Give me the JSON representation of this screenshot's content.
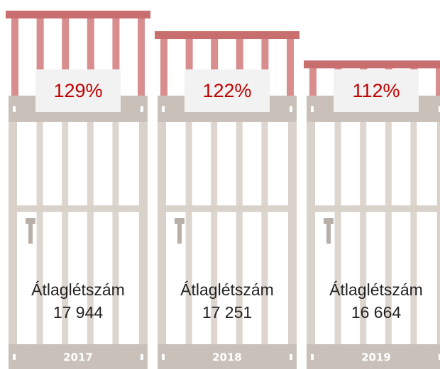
{
  "chart_data": {
    "type": "prison-gate",
    "categories": [
      "2017",
      "2018",
      "2019"
    ],
    "values": [
      129,
      122,
      112
    ],
    "value_labels": [
      "129%",
      "122%",
      "112%"
    ],
    "color": "#c86e6f",
    "ylim": [
      100,
      130
    ],
    "headcount_title": "Átlaglétszám",
    "headcounts": [
      17944,
      17251,
      16664
    ],
    "headcount_labels": [
      "17 944",
      "17 251",
      "16 664"
    ]
  }
}
